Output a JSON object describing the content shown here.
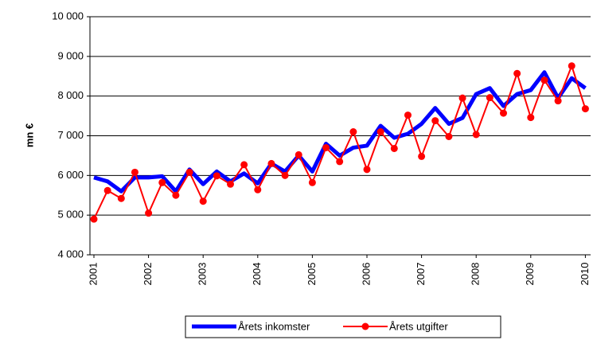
{
  "chart_data": {
    "type": "line",
    "y_label": "mn €",
    "categories": [
      "2001",
      null,
      null,
      null,
      "2002",
      null,
      null,
      null,
      "2003",
      null,
      null,
      null,
      "2004",
      null,
      null,
      null,
      "2005",
      null,
      null,
      null,
      "2006",
      null,
      null,
      null,
      "2007",
      null,
      null,
      null,
      "2008",
      null,
      null,
      null,
      "2009",
      null,
      null,
      null,
      "2010"
    ],
    "series": [
      {
        "name": "Årets inkomster",
        "color": "#0000ff",
        "markers": false,
        "values": [
          5950,
          5850,
          5600,
          5950,
          5950,
          5980,
          5600,
          6150,
          5780,
          6100,
          5850,
          6050,
          5800,
          6300,
          6100,
          6500,
          6100,
          6800,
          6500,
          6700,
          6750,
          7250,
          6950,
          7050,
          7300,
          7700,
          7300,
          7450,
          8050,
          8200,
          7750,
          8050,
          8150,
          8600,
          7950,
          8450,
          8200
        ]
      },
      {
        "name": "Årets utgifter",
        "color": "#ff0000",
        "markers": true,
        "values": [
          4900,
          5620,
          5420,
          6080,
          5050,
          5820,
          5500,
          6080,
          5350,
          5990,
          5780,
          6270,
          5640,
          6300,
          6000,
          6520,
          5820,
          6700,
          6350,
          7100,
          6150,
          7100,
          6680,
          7520,
          6480,
          7380,
          6980,
          7950,
          7030,
          7960,
          7570,
          8570,
          7460,
          8400,
          7880,
          8760,
          7680
        ]
      }
    ],
    "ylim": [
      4000,
      10000
    ],
    "yticks": [
      {
        "value": 4000,
        "label": "4 000"
      },
      {
        "value": 5000,
        "label": "5 000"
      },
      {
        "value": 6000,
        "label": "6 000"
      },
      {
        "value": 7000,
        "label": "7 000"
      },
      {
        "value": 8000,
        "label": "8 000"
      },
      {
        "value": 9000,
        "label": "9 000"
      },
      {
        "value": 10000,
        "label": "10 000"
      }
    ],
    "grid": true,
    "legend": "bottom"
  }
}
